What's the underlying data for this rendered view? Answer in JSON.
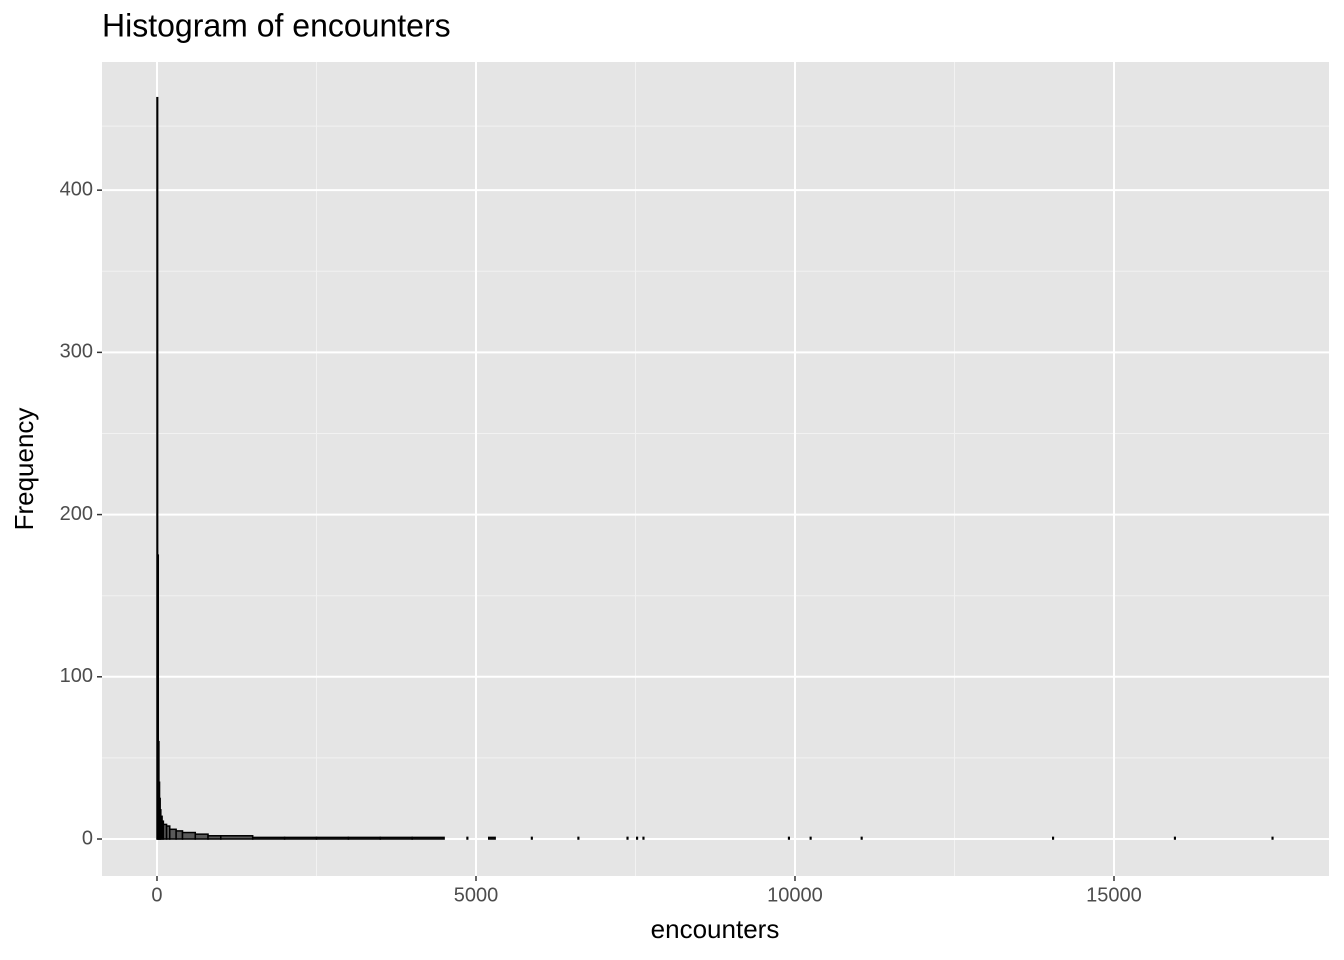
{
  "chart_data": {
    "type": "histogram",
    "title": "Histogram of encounters",
    "x_label": "encounters",
    "y_label": "Frequency",
    "bins": [
      0,
      10,
      20,
      30,
      40,
      50,
      60,
      80,
      100,
      150,
      200,
      300,
      400,
      600,
      800,
      1000,
      1500,
      2000,
      2500,
      3000,
      3500,
      4000,
      4500,
      4860,
      4870,
      5200,
      5300,
      5870,
      5880,
      6600,
      6610,
      7370,
      7380,
      7520,
      7530,
      7620,
      7630,
      9900,
      9910,
      10240,
      10250,
      11040,
      11050,
      14040,
      14050,
      15950,
      15960,
      17480,
      17490
    ],
    "counts": [
      457,
      175,
      60,
      35,
      25,
      18,
      14,
      11,
      9,
      8,
      6,
      5,
      4,
      3,
      2,
      2,
      1,
      1,
      1,
      1,
      1,
      1,
      0,
      1,
      0,
      1,
      0,
      1,
      0,
      1,
      0,
      1,
      0,
      1,
      0,
      1,
      0,
      1,
      0,
      1,
      0,
      1,
      0,
      1,
      0,
      1,
      0,
      1
    ],
    "color": "#595959",
    "edge_color": "#000000",
    "xlim": [
      -862,
      18370
    ],
    "ylim": [
      -22.8,
      479
    ],
    "xticks": [
      0,
      5000,
      10000,
      15000
    ],
    "yticks": [
      0,
      100,
      200,
      300,
      400
    ],
    "grid": true
  }
}
